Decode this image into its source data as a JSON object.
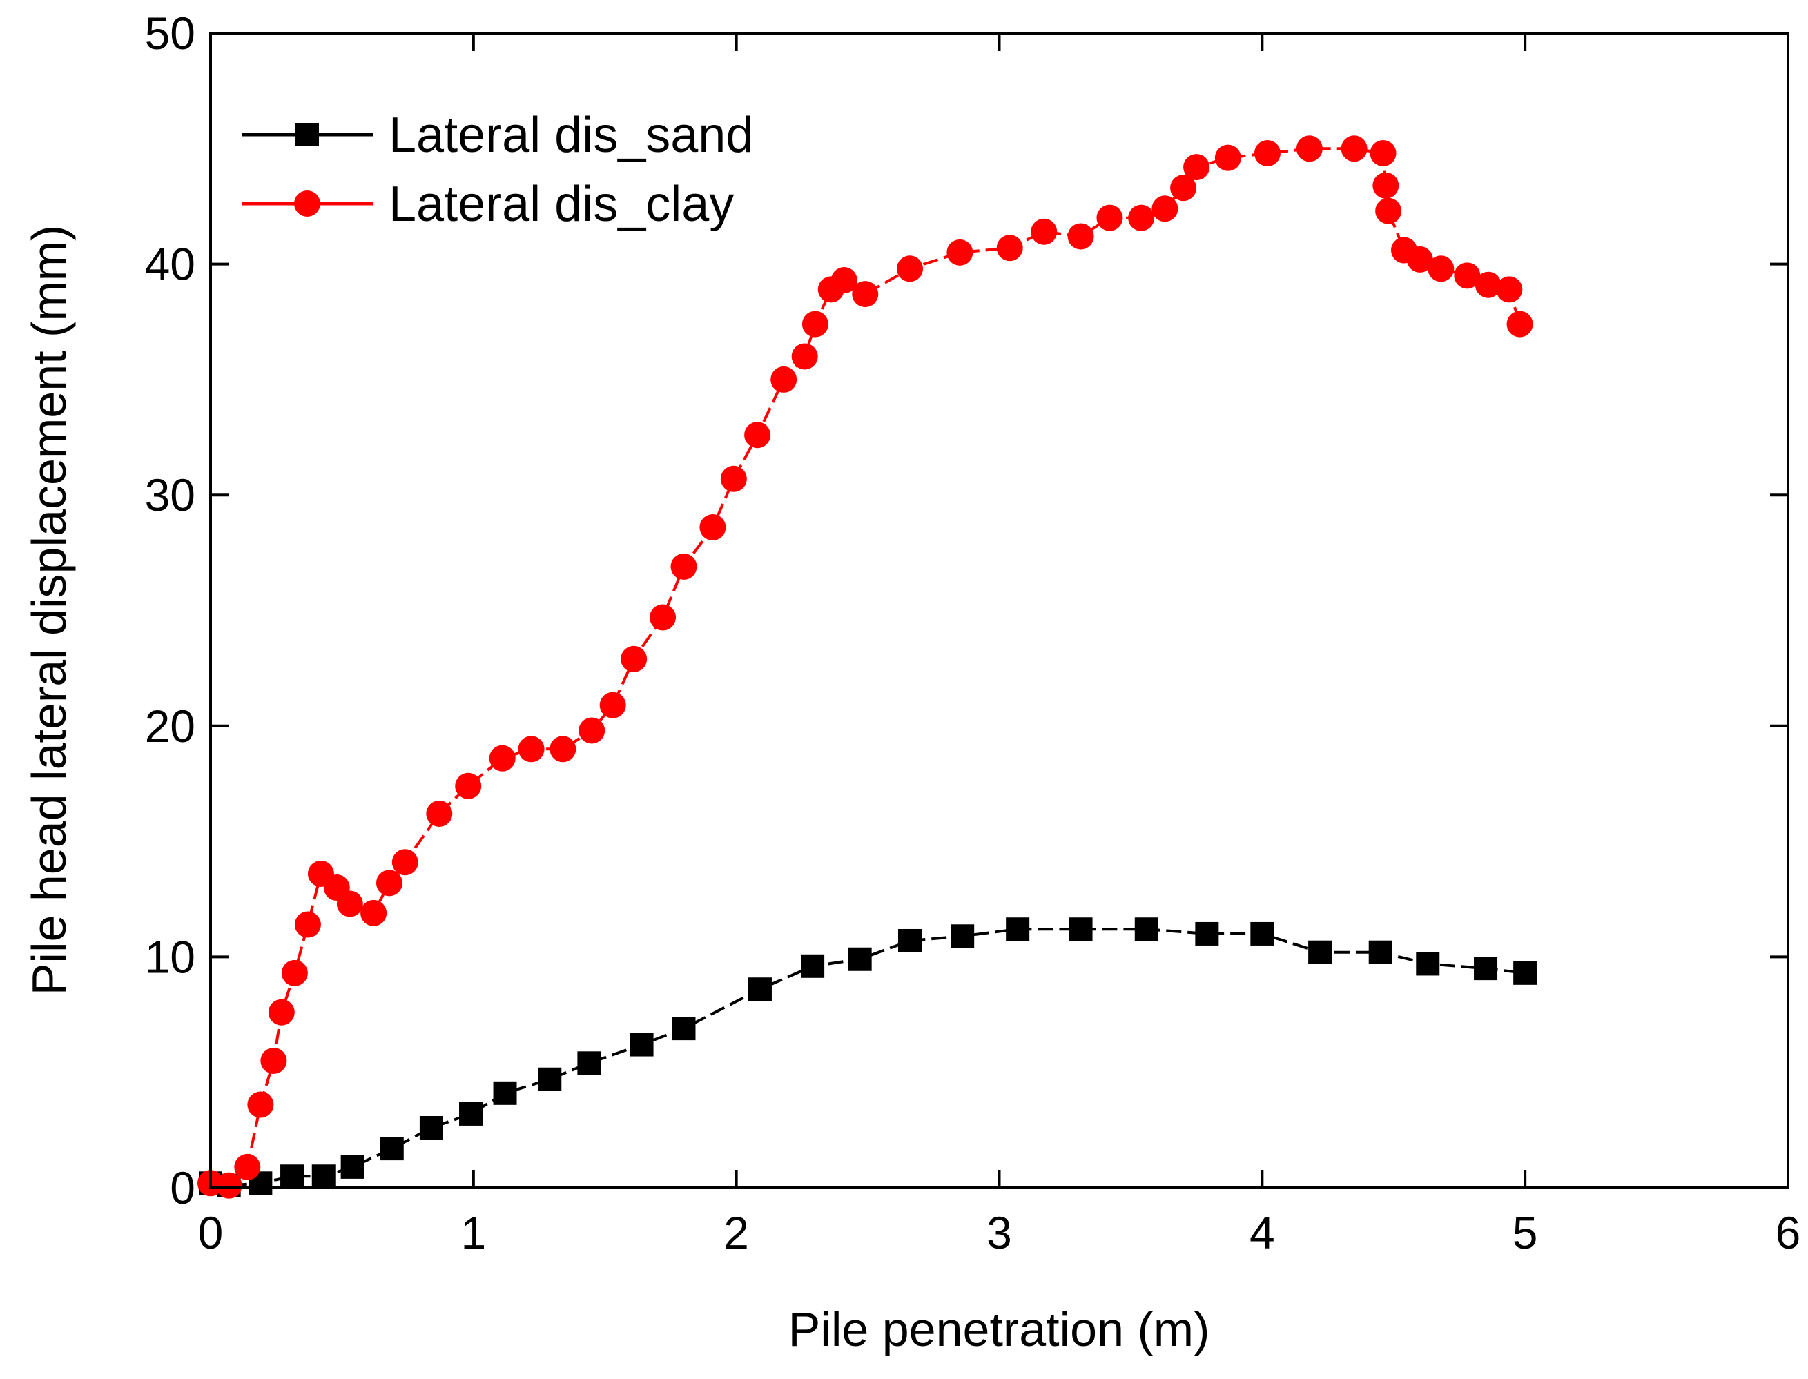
{
  "chart_data": {
    "type": "line",
    "title": "",
    "xlabel": "Pile penetration (m)",
    "ylabel": "Pile head lateral displacement (mm)",
    "xlim": [
      0,
      6
    ],
    "ylim": [
      0,
      50
    ],
    "xticks": [
      0,
      1,
      2,
      3,
      4,
      5,
      6
    ],
    "yticks": [
      0,
      10,
      20,
      30,
      40,
      50
    ],
    "grid": false,
    "legend_position": "top-left",
    "series": [
      {
        "name": "Lateral dis_sand",
        "color": "#000000",
        "marker": "square",
        "line_style": "dashed",
        "x": [
          0.0,
          0.07,
          0.19,
          0.31,
          0.43,
          0.54,
          0.69,
          0.84,
          0.99,
          1.12,
          1.29,
          1.44,
          1.64,
          1.8,
          2.09,
          2.29,
          2.47,
          2.66,
          2.86,
          3.07,
          3.31,
          3.56,
          3.79,
          4.0,
          4.22,
          4.45,
          4.63,
          4.85,
          5.0
        ],
        "y": [
          0.2,
          0.1,
          0.2,
          0.5,
          0.5,
          0.9,
          1.7,
          2.6,
          3.2,
          4.1,
          4.7,
          5.4,
          6.2,
          6.9,
          8.6,
          9.6,
          9.9,
          10.7,
          10.9,
          11.2,
          11.2,
          11.2,
          11.0,
          11.0,
          10.2,
          10.2,
          9.7,
          9.5,
          9.3
        ]
      },
      {
        "name": "Lateral dis_clay",
        "color": "#ff0000",
        "marker": "circle",
        "line_style": "dashed",
        "x": [
          0.0,
          0.07,
          0.14,
          0.19,
          0.24,
          0.27,
          0.32,
          0.37,
          0.42,
          0.48,
          0.53,
          0.62,
          0.68,
          0.74,
          0.87,
          0.98,
          1.11,
          1.22,
          1.34,
          1.45,
          1.53,
          1.61,
          1.72,
          1.8,
          1.91,
          1.99,
          2.08,
          2.18,
          2.26,
          2.3,
          2.36,
          2.41,
          2.49,
          2.66,
          2.85,
          3.04,
          3.17,
          3.31,
          3.42,
          3.54,
          3.63,
          3.7,
          3.75,
          3.87,
          4.02,
          4.18,
          4.35,
          4.46,
          4.47,
          4.48,
          4.54,
          4.6,
          4.68,
          4.78,
          4.86,
          4.94,
          4.98
        ],
        "y": [
          0.2,
          0.1,
          0.9,
          3.6,
          5.5,
          7.6,
          9.3,
          11.4,
          13.6,
          13.0,
          12.3,
          11.9,
          13.2,
          14.1,
          16.2,
          17.4,
          18.6,
          19.0,
          19.0,
          19.8,
          20.9,
          22.9,
          24.7,
          26.9,
          28.6,
          30.7,
          32.6,
          35.0,
          36.0,
          37.4,
          38.9,
          39.3,
          38.7,
          39.8,
          40.5,
          40.7,
          41.4,
          41.2,
          42.0,
          42.0,
          42.4,
          43.3,
          44.2,
          44.6,
          44.8,
          45.0,
          45.0,
          44.8,
          43.4,
          42.3,
          40.6,
          40.2,
          39.8,
          39.5,
          39.1,
          38.9,
          37.4
        ]
      }
    ]
  }
}
